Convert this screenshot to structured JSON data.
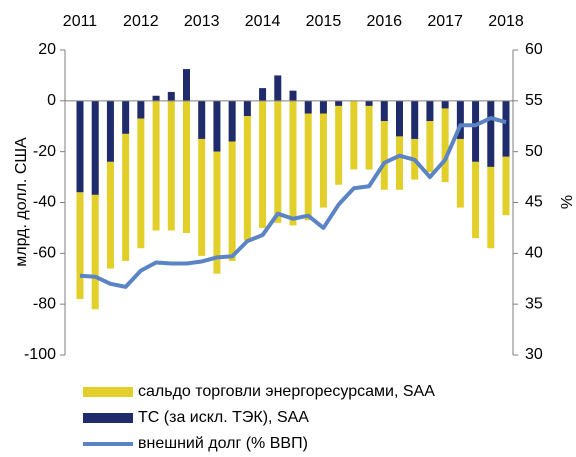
{
  "chart_data": {
    "type": "bar",
    "categories": [
      "2011",
      null,
      null,
      null,
      "2012",
      null,
      null,
      null,
      "2013",
      null,
      null,
      null,
      "2014",
      null,
      null,
      null,
      "2015",
      null,
      null,
      null,
      "2016",
      null,
      null,
      null,
      "2017",
      null,
      null,
      null,
      "2018"
    ],
    "ylabel": "млрд. долл. США",
    "y2label": "%",
    "ylim": [
      -100,
      20
    ],
    "yticks": [
      -100,
      -80,
      -60,
      -40,
      -20,
      0,
      20
    ],
    "y2lim": [
      30,
      60
    ],
    "y2ticks": [
      30,
      35,
      40,
      45,
      50,
      55,
      60
    ],
    "series": [
      {
        "name": "сальдо торговли энергоресурсами, SAA",
        "type": "bar",
        "color": "#e3cf2a",
        "values": [
          -42,
          -45,
          -42,
          -50,
          -51,
          -51,
          -51,
          -52,
          -46,
          -48,
          -47,
          -49,
          -50,
          -48,
          -49,
          -42,
          -37,
          -31,
          -27,
          -25,
          -27,
          -21,
          -16,
          -20,
          -29,
          -27,
          -30,
          -32,
          -23
        ]
      },
      {
        "name": "ТС  (за искл. ТЭК), SAA",
        "type": "bar",
        "color": "#1f2b6b",
        "values": [
          -36,
          -37,
          -24,
          -13,
          -7,
          2,
          3.5,
          12.5,
          -15,
          -20,
          -16,
          -6,
          5,
          10,
          4,
          -5,
          -5,
          -2,
          0,
          -2,
          -8,
          -14,
          -15,
          -8,
          -3,
          -15,
          -24,
          -26,
          -22
        ]
      },
      {
        "name": "внешний долг (% ВВП)",
        "type": "line",
        "axis": "y2",
        "color": "#5b84c4",
        "values": [
          37.8,
          37.7,
          37.0,
          36.7,
          38.3,
          39.1,
          39.0,
          39.0,
          39.2,
          39.6,
          39.7,
          41.2,
          41.8,
          43.9,
          43.4,
          43.7,
          42.5,
          44.8,
          46.4,
          46.6,
          48.9,
          49.6,
          49.2,
          47.5,
          49.2,
          52.6,
          52.6,
          53.3,
          52.9
        ]
      }
    ]
  }
}
